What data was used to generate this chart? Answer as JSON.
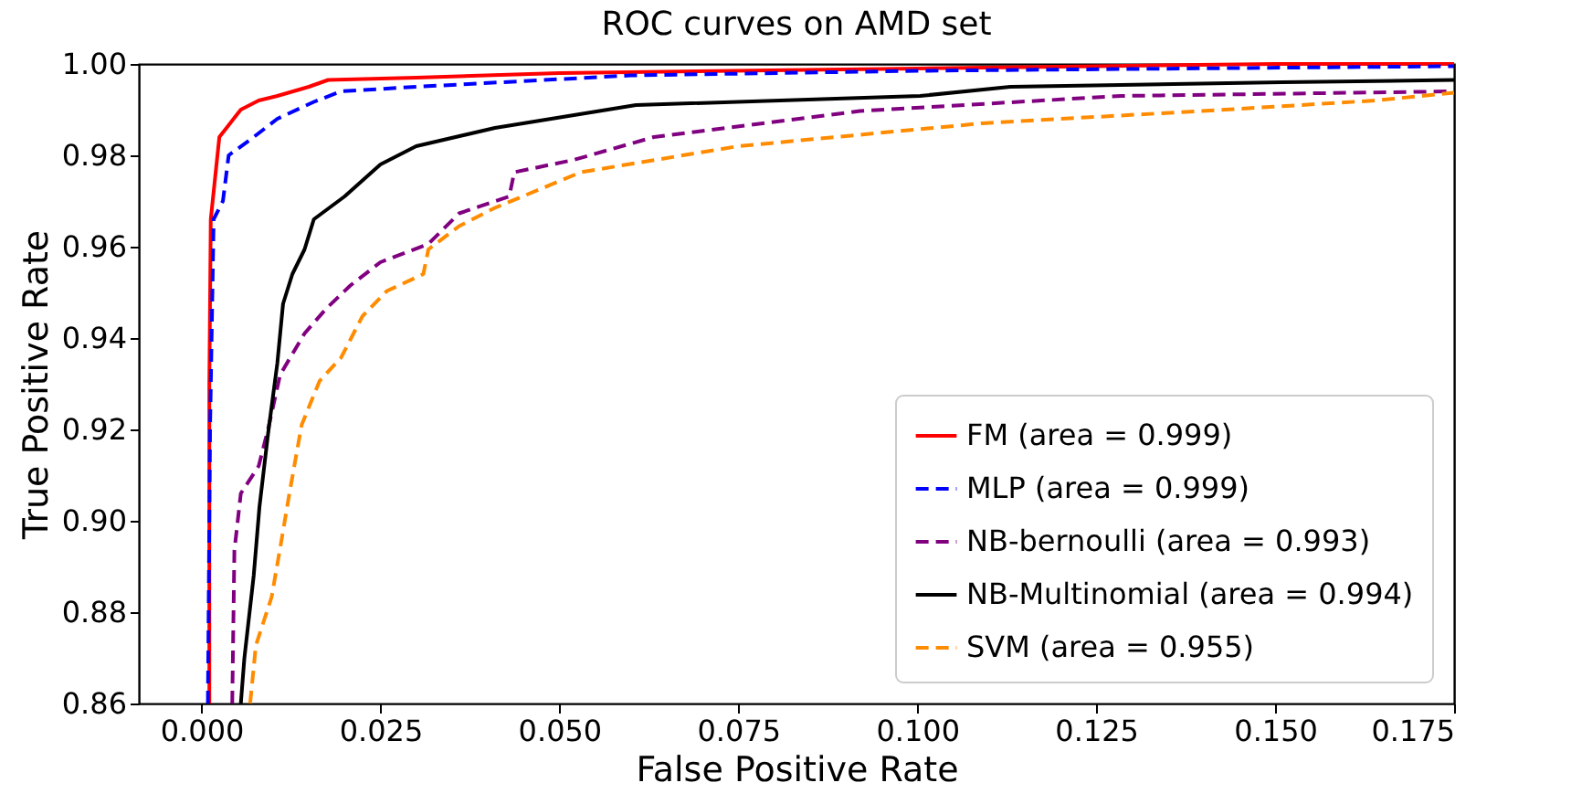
{
  "chart_data": {
    "type": "line",
    "title": "ROC curves on AMD set",
    "xlabel": "False Positive Rate",
    "ylabel": "True Positive Rate",
    "xlim": [
      -0.00875,
      0.175
    ],
    "ylim": [
      0.86,
      1.0
    ],
    "xticks": [
      {
        "value": 0,
        "label": "0.000"
      },
      {
        "value": 0.025,
        "label": "0.025"
      },
      {
        "value": 0.05,
        "label": "0.050"
      },
      {
        "value": 0.075,
        "label": "0.075"
      },
      {
        "value": 0.1,
        "label": "0.100"
      },
      {
        "value": 0.125,
        "label": "0.125"
      },
      {
        "value": 0.15,
        "label": "0.150"
      },
      {
        "value": 0.175,
        "label": "0.175"
      }
    ],
    "yticks": [
      {
        "value": 0.86,
        "label": "0.86"
      },
      {
        "value": 0.88,
        "label": "0.88"
      },
      {
        "value": 0.9,
        "label": "0.90"
      },
      {
        "value": 0.92,
        "label": "0.92"
      },
      {
        "value": 0.94,
        "label": "0.94"
      },
      {
        "value": 0.96,
        "label": "0.96"
      },
      {
        "value": 0.98,
        "label": "0.98"
      },
      {
        "value": 1.0,
        "label": "1.00"
      }
    ],
    "legend": "bottom right",
    "series": [
      {
        "name": "FM (area = 0.999)",
        "color": "#ff0000",
        "line_style": "solid",
        "x": [
          0.0011,
          0.0011,
          0.0013,
          0.0025,
          0.004,
          0.0055,
          0.008,
          0.0106,
          0.015,
          0.0177,
          0.03,
          0.05,
          0.1,
          0.125,
          0.15,
          0.175
        ],
        "values": [
          0.86,
          0.93,
          0.966,
          0.984,
          0.987,
          0.99,
          0.992,
          0.993,
          0.995,
          0.9965,
          0.997,
          0.998,
          0.999,
          0.9995,
          1.0,
          1.0
        ]
      },
      {
        "name": "MLP (area = 0.999)",
        "color": "#0000ff",
        "line_style": "dashed",
        "x": [
          0.0009,
          0.0012,
          0.0017,
          0.003,
          0.0038,
          0.0073,
          0.0106,
          0.0157,
          0.0195,
          0.03,
          0.06,
          0.1,
          0.175
        ],
        "values": [
          0.86,
          0.92,
          0.966,
          0.97,
          0.98,
          0.984,
          0.988,
          0.9917,
          0.994,
          0.995,
          0.9975,
          0.9985,
          0.9995
        ]
      },
      {
        "name": "NB-bernoulli (area = 0.993)",
        "color": "#800080",
        "line_style": "dashed",
        "x": [
          0.0043,
          0.0046,
          0.0055,
          0.008,
          0.0093,
          0.011,
          0.0144,
          0.0174,
          0.0208,
          0.025,
          0.0317,
          0.036,
          0.043,
          0.0437,
          0.052,
          0.0632,
          0.092,
          0.1285,
          0.175
        ],
        "values": [
          0.86,
          0.8935,
          0.906,
          0.912,
          0.92,
          0.932,
          0.941,
          0.9464,
          0.9515,
          0.9566,
          0.9606,
          0.9673,
          0.971,
          0.9763,
          0.979,
          0.984,
          0.9897,
          0.993,
          0.994
        ]
      },
      {
        "name": "NB-Multinomial (area = 0.994)",
        "color": "#000000",
        "line_style": "solid",
        "x": [
          0.0055,
          0.006,
          0.0073,
          0.0081,
          0.0093,
          0.0106,
          0.0114,
          0.0127,
          0.0144,
          0.0157,
          0.02,
          0.025,
          0.03,
          0.041,
          0.0607,
          0.1004,
          0.113,
          0.151,
          0.175
        ],
        "values": [
          0.86,
          0.87,
          0.888,
          0.903,
          0.919,
          0.9345,
          0.9475,
          0.954,
          0.9594,
          0.966,
          0.971,
          0.978,
          0.982,
          0.986,
          0.991,
          0.993,
          0.995,
          0.996,
          0.9965
        ]
      },
      {
        "name": "SVM (area = 0.955)",
        "color": "#ff8c00",
        "line_style": "dashed",
        "x": [
          0.0068,
          0.0076,
          0.0098,
          0.0111,
          0.0124,
          0.014,
          0.0165,
          0.0195,
          0.0225,
          0.0259,
          0.031,
          0.0317,
          0.036,
          0.041,
          0.053,
          0.075,
          0.109,
          0.143,
          0.164,
          0.175
        ],
        "values": [
          0.86,
          0.8727,
          0.8833,
          0.895,
          0.907,
          0.921,
          0.9306,
          0.9357,
          0.9448,
          0.9503,
          0.954,
          0.9594,
          0.9645,
          0.9685,
          0.9763,
          0.982,
          0.987,
          0.99,
          0.992,
          0.9937
        ]
      }
    ]
  }
}
